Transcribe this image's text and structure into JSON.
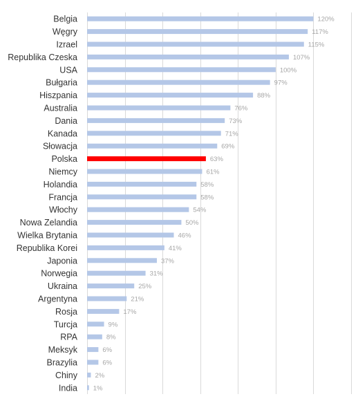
{
  "chart_data": {
    "type": "bar",
    "orientation": "horizontal",
    "categories": [
      "Belgia",
      "Węgry",
      "Izrael",
      "Republika Czeska",
      "USA",
      "Bułgaria",
      "Hiszpania",
      "Australia",
      "Dania",
      "Kanada",
      "Słowacja",
      "Polska",
      "Niemcy",
      "Holandia",
      "Francja",
      "Włochy",
      "Nowa Zelandia",
      "Wielka Brytania",
      "Republika Korei",
      "Japonia",
      "Norwegia",
      "Ukraina",
      "Argentyna",
      "Rosja",
      "Turcja",
      "RPA",
      "Meksyk",
      "Brazylia",
      "Chiny",
      "India"
    ],
    "values": [
      120,
      117,
      115,
      107,
      100,
      97,
      88,
      76,
      73,
      71,
      69,
      63,
      61,
      58,
      58,
      54,
      50,
      46,
      41,
      37,
      31,
      25,
      21,
      17,
      9,
      8,
      6,
      6,
      2,
      1
    ],
    "value_labels": [
      "120%",
      "117%",
      "115%",
      "107%",
      "100%",
      "97%",
      "88%",
      "76%",
      "73%",
      "71%",
      "69%",
      "63%",
      "61%",
      "58%",
      "58%",
      "54%",
      "50%",
      "46%",
      "41%",
      "37%",
      "31%",
      "25%",
      "21%",
      "17%",
      "9%",
      "8%",
      "6%",
      "6%",
      "2%",
      "1%"
    ],
    "highlight": "Polska",
    "xlim": [
      0,
      140
    ],
    "vertical_grid_lines": true,
    "bar_color": "#b4c7e7",
    "highlight_color": "#ff0000"
  }
}
